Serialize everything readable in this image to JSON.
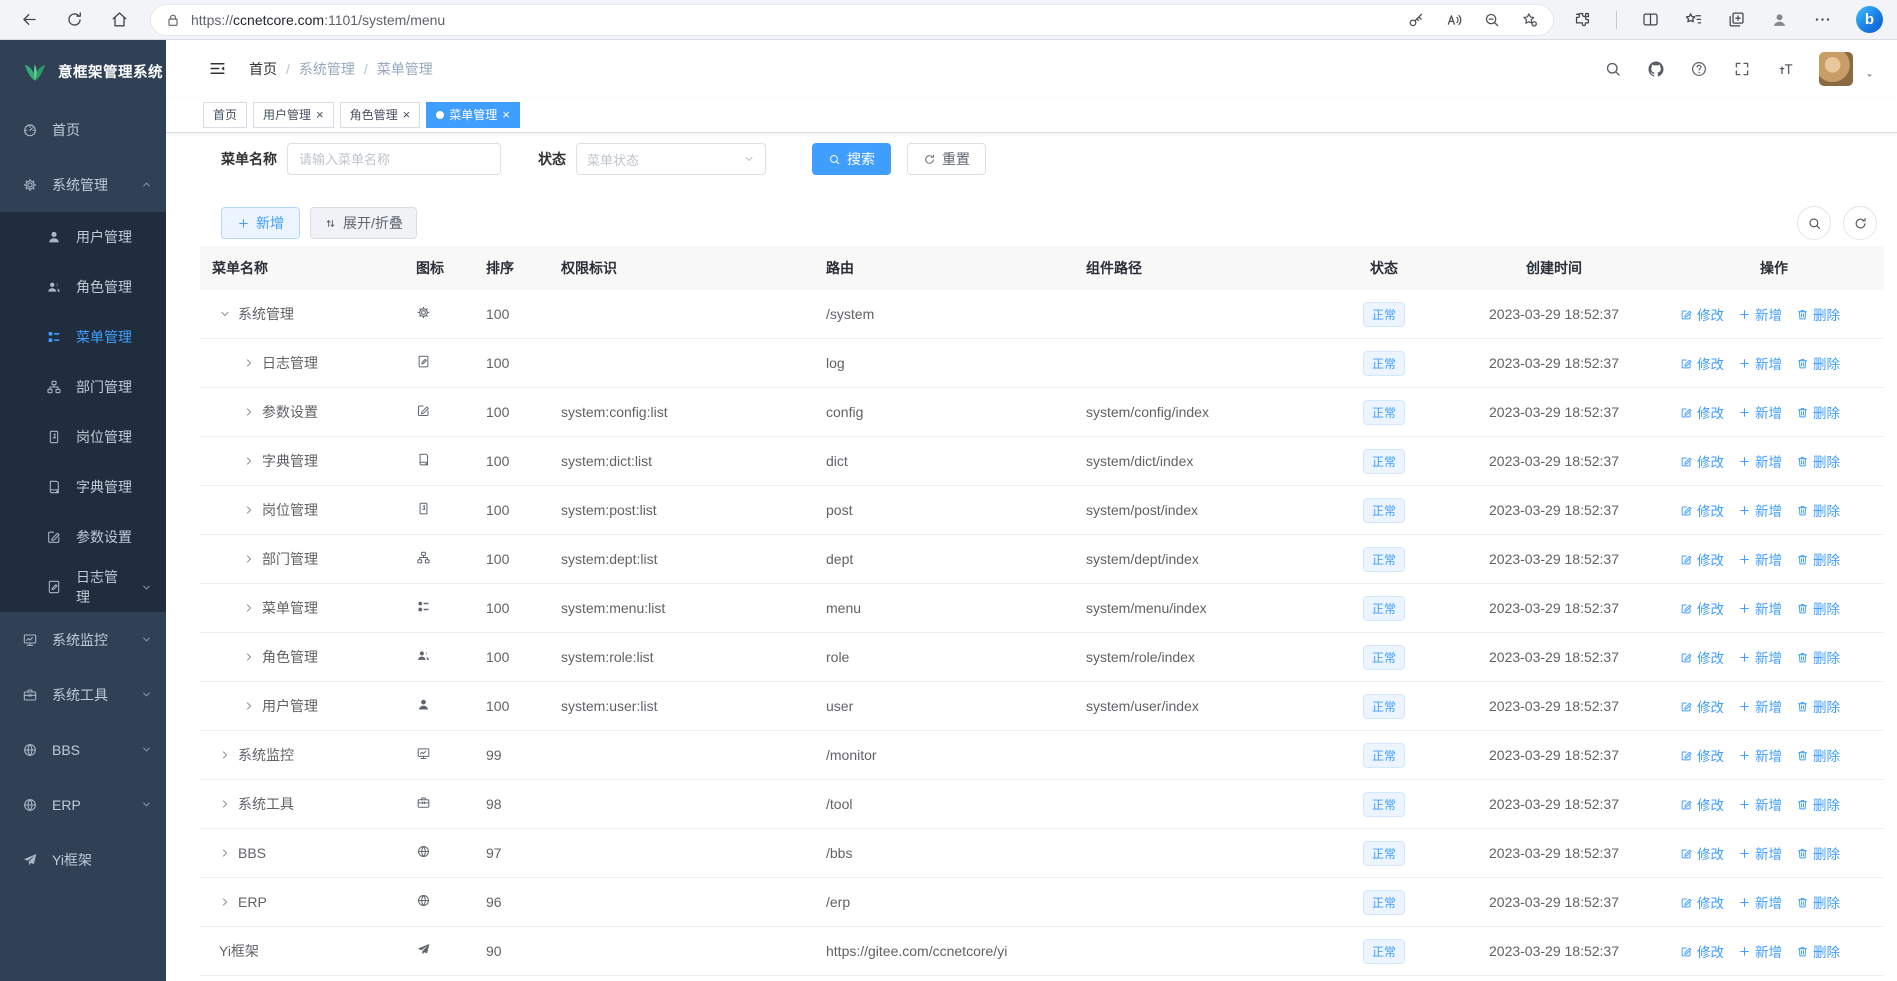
{
  "browser": {
    "url": {
      "scheme": "https://",
      "host": "ccnetcore.com",
      "rest": ":1101/system/menu"
    },
    "bing_label": "b"
  },
  "icons": {
    "back": "back",
    "reload": "reload",
    "home": "home",
    "lock": "lock",
    "key": "key",
    "read_aloud": "read-aloud",
    "zoom_out": "zoom-out",
    "favorite_add": "star-plus",
    "extensions": "extensions",
    "split_screen": "split",
    "favorites": "fav-star",
    "collections": "collections",
    "profile": "person",
    "more": "ellipsis",
    "menu_fold": "menu-fold",
    "search": "search",
    "github": "github",
    "help": "question",
    "fullscreen": "expand",
    "font_size": "font-size",
    "caret_down": "caret-down",
    "chevron_down": "chev-down",
    "refresh": "reload",
    "sort": "sort",
    "plus": "plus",
    "logo": "leaf"
  },
  "logo": {
    "title": "意框架管理系统"
  },
  "sidebar": {
    "items": [
      {
        "label": "首页",
        "icon": "dashboard"
      },
      {
        "label": "系统管理",
        "icon": "gear",
        "arrow": "chev-up",
        "children": [
          {
            "label": "用户管理",
            "icon": "user"
          },
          {
            "label": "角色管理",
            "icon": "users"
          },
          {
            "label": "菜单管理",
            "icon": "menu-list",
            "state": "active"
          },
          {
            "label": "部门管理",
            "icon": "org-tree"
          },
          {
            "label": "岗位管理",
            "icon": "badge"
          },
          {
            "label": "字典管理",
            "icon": "dict-book"
          },
          {
            "label": "参数设置",
            "icon": "edit-square"
          },
          {
            "label": "日志管理",
            "icon": "log-doc",
            "arrow": "chev-down"
          }
        ]
      },
      {
        "label": "系统监控",
        "icon": "monitor",
        "arrow": "chev-down"
      },
      {
        "label": "系统工具",
        "icon": "toolbox",
        "arrow": "chev-down"
      },
      {
        "label": "BBS",
        "icon": "globe",
        "arrow": "chev-down"
      },
      {
        "label": "ERP",
        "icon": "globe",
        "arrow": "chev-down"
      },
      {
        "label": "Yi框架",
        "icon": "paper-plane"
      }
    ]
  },
  "breadcrumb": {
    "separator": "/",
    "items": [
      {
        "label": "首页",
        "state": "root",
        "sep": true
      },
      {
        "label": "系统管理",
        "sep": true
      },
      {
        "label": "菜单管理"
      }
    ]
  },
  "tabs": {
    "close_glyph": "×",
    "items": [
      {
        "label": "首页"
      },
      {
        "label": "用户管理",
        "closable": true
      },
      {
        "label": "角色管理",
        "closable": true
      },
      {
        "label": "菜单管理",
        "closable": true,
        "active": true,
        "state": "active"
      }
    ]
  },
  "filter": {
    "name_label": "菜单名称",
    "name_placeholder": "请输入菜单名称",
    "status_label": "状态",
    "status_placeholder": "菜单状态",
    "search_label": "搜索",
    "reset_label": "重置"
  },
  "toolbar": {
    "add_label": "新增",
    "toggle_label": "展开/折叠"
  },
  "table": {
    "columns": [
      {
        "label": "菜单名称",
        "key": "name"
      },
      {
        "label": "图标",
        "key": "icon"
      },
      {
        "label": "排序",
        "key": "sort"
      },
      {
        "label": "权限标识",
        "key": "perm"
      },
      {
        "label": "路由",
        "key": "path"
      },
      {
        "label": "组件路径",
        "key": "comp"
      },
      {
        "label": "状态",
        "key": "status"
      },
      {
        "label": "创建时间",
        "key": "time"
      },
      {
        "label": "操作",
        "key": "ops"
      }
    ],
    "ops": [
      {
        "label": "修改",
        "icon": "edit-pen",
        "dname": "modify-link"
      },
      {
        "label": "新增",
        "icon": "plus",
        "dname": "add-link"
      },
      {
        "label": "删除",
        "icon": "trash",
        "dname": "delete-link"
      }
    ],
    "rows": [
      {
        "level": 0,
        "arrow": "chev-down",
        "name": "系统管理",
        "icon": "gear",
        "order": "100",
        "perm": "",
        "path": "/system",
        "component": "",
        "status": "正常",
        "created": "2023-03-29 18:52:37"
      },
      {
        "level": 1,
        "arrow": "chev-right",
        "name": "日志管理",
        "icon": "log-doc",
        "order": "100",
        "perm": "",
        "path": "log",
        "component": "",
        "status": "正常",
        "created": "2023-03-29 18:52:37"
      },
      {
        "level": 1,
        "arrow": "chev-right",
        "name": "参数设置",
        "icon": "edit-square",
        "order": "100",
        "perm": "system:config:list",
        "path": "config",
        "component": "system/config/index",
        "status": "正常",
        "created": "2023-03-29 18:52:37"
      },
      {
        "level": 1,
        "arrow": "chev-right",
        "name": "字典管理",
        "icon": "dict-book",
        "order": "100",
        "perm": "system:dict:list",
        "path": "dict",
        "component": "system/dict/index",
        "status": "正常",
        "created": "2023-03-29 18:52:37"
      },
      {
        "level": 1,
        "arrow": "chev-right",
        "name": "岗位管理",
        "icon": "badge",
        "order": "100",
        "perm": "system:post:list",
        "path": "post",
        "component": "system/post/index",
        "status": "正常",
        "created": "2023-03-29 18:52:37"
      },
      {
        "level": 1,
        "arrow": "chev-right",
        "name": "部门管理",
        "icon": "org-tree",
        "order": "100",
        "perm": "system:dept:list",
        "path": "dept",
        "component": "system/dept/index",
        "status": "正常",
        "created": "2023-03-29 18:52:37"
      },
      {
        "level": 1,
        "arrow": "chev-right",
        "name": "菜单管理",
        "icon": "menu-list",
        "order": "100",
        "perm": "system:menu:list",
        "path": "menu",
        "component": "system/menu/index",
        "status": "正常",
        "created": "2023-03-29 18:52:37"
      },
      {
        "level": 1,
        "arrow": "chev-right",
        "name": "角色管理",
        "icon": "users",
        "order": "100",
        "perm": "system:role:list",
        "path": "role",
        "component": "system/role/index",
        "status": "正常",
        "created": "2023-03-29 18:52:37"
      },
      {
        "level": 1,
        "arrow": "chev-right",
        "name": "用户管理",
        "icon": "user",
        "order": "100",
        "perm": "system:user:list",
        "path": "user",
        "component": "system/user/index",
        "status": "正常",
        "created": "2023-03-29 18:52:37"
      },
      {
        "level": 0,
        "arrow": "chev-right",
        "name": "系统监控",
        "icon": "monitor",
        "order": "99",
        "perm": "",
        "path": "/monitor",
        "component": "",
        "status": "正常",
        "created": "2023-03-29 18:52:37"
      },
      {
        "level": 0,
        "arrow": "chev-right",
        "name": "系统工具",
        "icon": "toolbox",
        "order": "98",
        "perm": "",
        "path": "/tool",
        "component": "",
        "status": "正常",
        "created": "2023-03-29 18:52:37"
      },
      {
        "level": 0,
        "arrow": "chev-right",
        "name": "BBS",
        "icon": "globe",
        "order": "97",
        "perm": "",
        "path": "/bbs",
        "component": "",
        "status": "正常",
        "created": "2023-03-29 18:52:37"
      },
      {
        "level": 0,
        "arrow": "chev-right",
        "name": "ERP",
        "icon": "globe",
        "order": "96",
        "perm": "",
        "path": "/erp",
        "component": "",
        "status": "正常",
        "created": "2023-03-29 18:52:37"
      },
      {
        "level": 0,
        "name": "Yi框架",
        "icon": "paper-plane",
        "order": "90",
        "perm": "",
        "path": "https://gitee.com/ccnetcore/yi",
        "component": "",
        "status": "正常",
        "created": "2023-03-29 18:52:37"
      }
    ]
  }
}
